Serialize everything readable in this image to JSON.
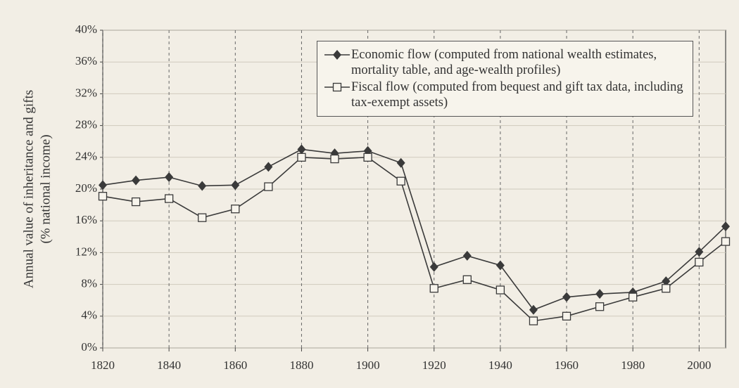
{
  "chart_data": {
    "type": "line",
    "ylabel": [
      "Annual value of inheritance and gifts",
      "(% national income)"
    ],
    "x": [
      1820,
      1830,
      1840,
      1850,
      1860,
      1870,
      1880,
      1890,
      1900,
      1910,
      1920,
      1930,
      1940,
      1950,
      1960,
      1970,
      1980,
      1990,
      2000,
      2008
    ],
    "series": [
      {
        "name": "Economic flow (computed from national wealth estimates, mortality table, and age-wealth profiles)",
        "color": "#3a3a3a",
        "marker": "diamond",
        "values": [
          20.5,
          21.1,
          21.5,
          20.4,
          20.5,
          22.8,
          25.0,
          24.5,
          24.8,
          23.3,
          10.2,
          11.6,
          10.4,
          4.8,
          6.4,
          6.8,
          7.0,
          8.4,
          12.1,
          15.3
        ]
      },
      {
        "name": "Fiscal flow (computed from bequest and gift tax data, including tax-exempt assets)",
        "color": "#3a3a3a",
        "marker": "square",
        "values": [
          19.1,
          18.4,
          18.8,
          16.4,
          17.5,
          20.3,
          24.0,
          23.8,
          24.0,
          21.0,
          7.5,
          8.6,
          7.3,
          3.4,
          4.0,
          5.2,
          6.4,
          7.5,
          10.8,
          13.4
        ]
      }
    ],
    "xlim": [
      1820,
      2008
    ],
    "xticks": [
      1820,
      1840,
      1860,
      1880,
      1900,
      1920,
      1940,
      1960,
      1980,
      2000
    ],
    "ylim": [
      0,
      40
    ],
    "yticks": [
      {
        "value": 0,
        "label": "0%"
      },
      {
        "value": 4,
        "label": "4%"
      },
      {
        "value": 8,
        "label": "8%"
      },
      {
        "value": 12,
        "label": "12%"
      },
      {
        "value": 16,
        "label": "16%"
      },
      {
        "value": 20,
        "label": "20%"
      },
      {
        "value": 24,
        "label": "24%"
      },
      {
        "value": 28,
        "label": "28%"
      },
      {
        "value": 32,
        "label": "32%"
      },
      {
        "value": 36,
        "label": "36%"
      },
      {
        "value": 40,
        "label": "40%"
      }
    ],
    "grid": true,
    "legend": "upper right"
  }
}
